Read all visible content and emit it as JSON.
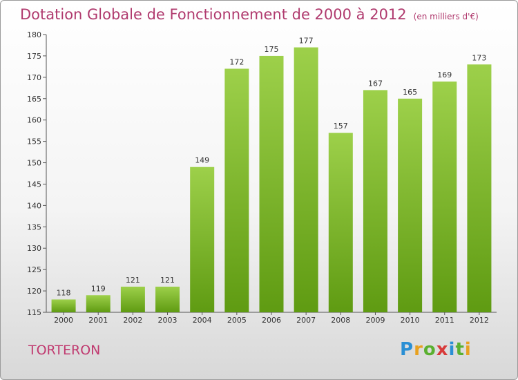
{
  "title": "Dotation Globale de Fonctionnement de 2000 à 2012",
  "unit_note": "(en milliers d'€)",
  "commune": "TORTERON",
  "brand": {
    "letters": [
      "P",
      "r",
      "o",
      "x",
      "i",
      "t",
      "i"
    ],
    "colors": [
      "#2a8fd4",
      "#e8a11f",
      "#5ab030",
      "#d83a3a",
      "#2a8fd4",
      "#5ab030",
      "#e8a11f"
    ]
  },
  "colors": {
    "bar_top": "#9dd04a",
    "bar_bottom": "#5f9b12",
    "title": "#b03a6e"
  },
  "chart_data": {
    "type": "bar",
    "title": "Dotation Globale de Fonctionnement de 2000 à 2012",
    "categories": [
      "2000",
      "2001",
      "2002",
      "2003",
      "2004",
      "2005",
      "2006",
      "2007",
      "2008",
      "2009",
      "2010",
      "2011",
      "2012"
    ],
    "values": [
      118,
      119,
      121,
      121,
      149,
      172,
      175,
      177,
      157,
      167,
      165,
      169,
      173
    ],
    "ylim": [
      115,
      180
    ],
    "yticks": [
      115,
      120,
      125,
      130,
      135,
      140,
      145,
      150,
      155,
      160,
      165,
      170,
      175,
      180
    ],
    "grid": false,
    "xlabel": "",
    "ylabel": ""
  }
}
